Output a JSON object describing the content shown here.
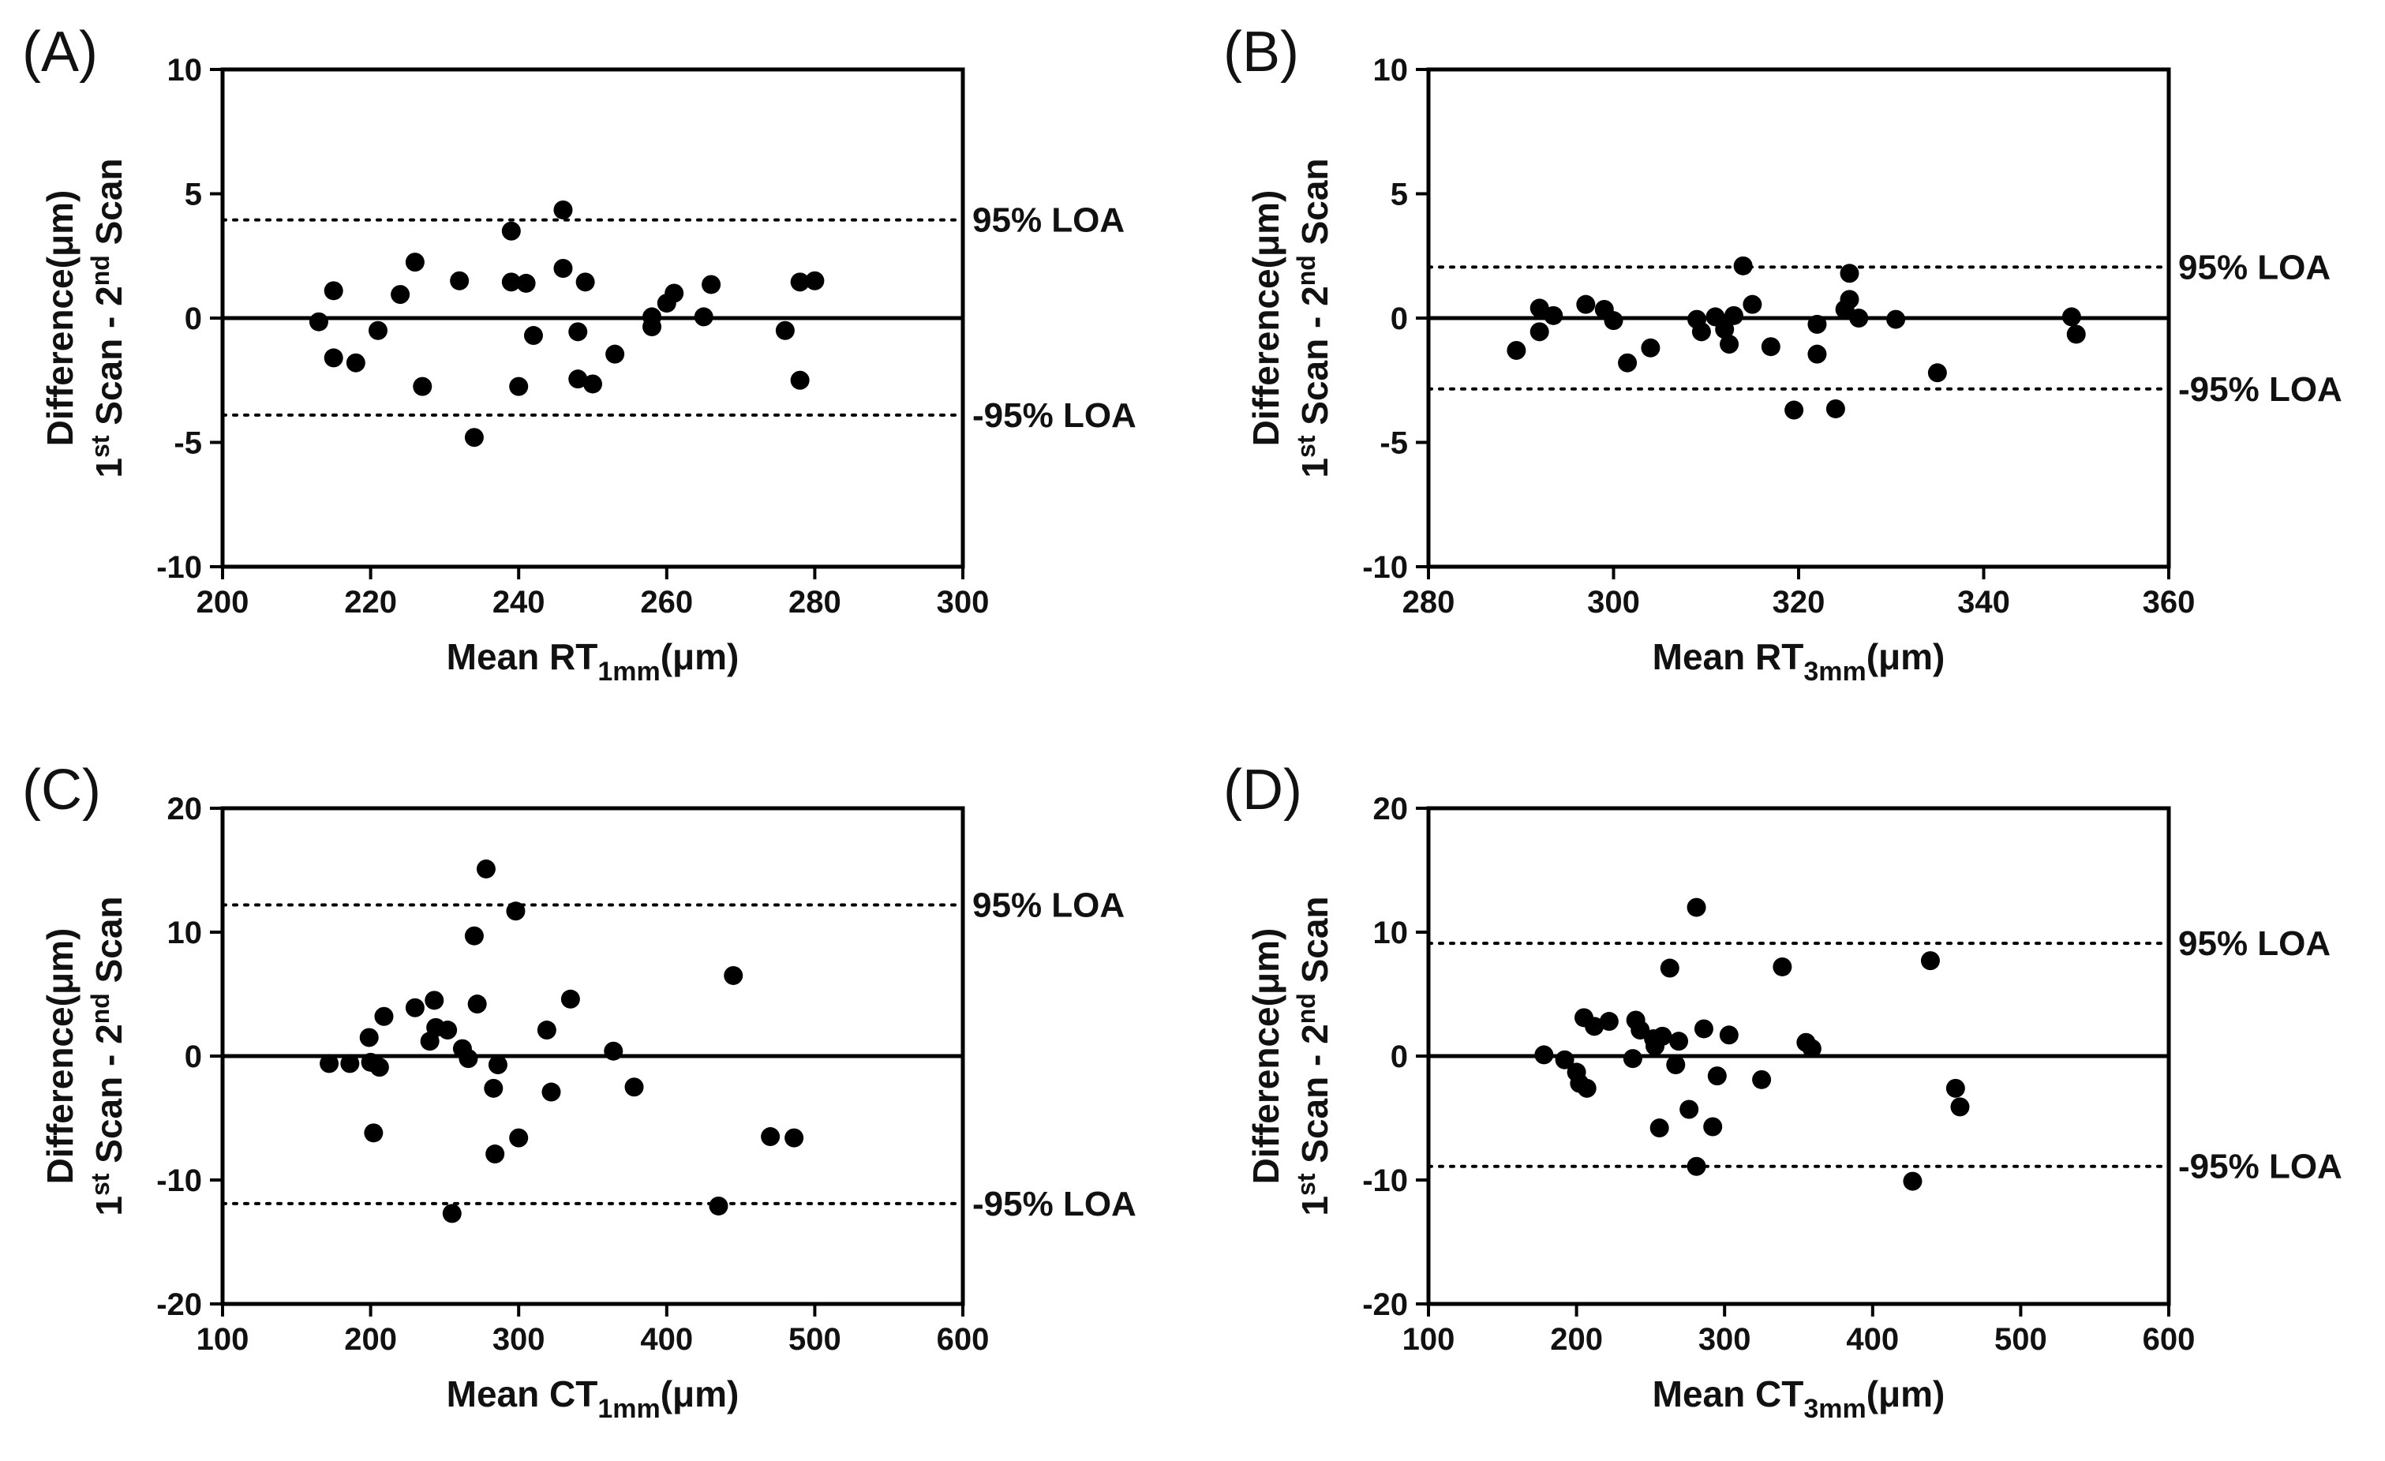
{
  "chart_data": [
    {
      "type": "scatter",
      "panel_label": "(A)",
      "xlabel": {
        "prefix": "Mean RT",
        "sub": "1mm",
        "suffix": "(μm)"
      },
      "ylabel_top": "Difference(μm)",
      "ylabel_bottom": {
        "a": "1",
        "sup1": "st",
        "b": " Scan - 2",
        "sup2": "nd",
        "c": " Scan"
      },
      "xlim": [
        200,
        300
      ],
      "xticks": [
        200,
        220,
        240,
        260,
        280,
        300
      ],
      "ylim": [
        -10,
        10
      ],
      "yticks": [
        -10,
        -5,
        0,
        5,
        10
      ],
      "loa_upper": 3.95,
      "loa_lower": -3.9,
      "loa_upper_label": "95% LOA",
      "loa_lower_label": "-95% LOA",
      "points": [
        [
          213,
          -0.15
        ],
        [
          215,
          1.1
        ],
        [
          215,
          -1.6
        ],
        [
          218,
          -1.8
        ],
        [
          221,
          -0.5
        ],
        [
          224,
          0.95
        ],
        [
          226,
          2.25
        ],
        [
          227,
          -2.75
        ],
        [
          232,
          1.5
        ],
        [
          234,
          -4.8
        ],
        [
          239,
          3.5
        ],
        [
          239,
          1.45
        ],
        [
          240,
          -2.75
        ],
        [
          241,
          1.4
        ],
        [
          242,
          -0.7
        ],
        [
          246,
          4.35
        ],
        [
          246,
          2.0
        ],
        [
          248,
          -2.45
        ],
        [
          248,
          -0.55
        ],
        [
          249,
          1.45
        ],
        [
          250,
          -2.65
        ],
        [
          253,
          -1.45
        ],
        [
          258,
          0.05
        ],
        [
          258,
          -0.35
        ],
        [
          260,
          0.6
        ],
        [
          261,
          1.0
        ],
        [
          265,
          0.05
        ],
        [
          266,
          1.35
        ],
        [
          276,
          -0.5
        ],
        [
          278,
          -2.5
        ],
        [
          278,
          1.45
        ],
        [
          280,
          1.5
        ]
      ]
    },
    {
      "type": "scatter",
      "panel_label": "(B)",
      "xlabel": {
        "prefix": "Mean RT",
        "sub": "3mm",
        "suffix": "(μm)"
      },
      "ylabel_top": "Difference(μm)",
      "ylabel_bottom": {
        "a": "1",
        "sup1": "st",
        "b": " Scan - 2",
        "sup2": "nd",
        "c": " Scan"
      },
      "xlim": [
        280,
        360
      ],
      "xticks": [
        280,
        300,
        320,
        340,
        360
      ],
      "ylim": [
        -10,
        10
      ],
      "yticks": [
        -10,
        -5,
        0,
        5,
        10
      ],
      "loa_upper": 2.05,
      "loa_lower": -2.85,
      "loa_upper_label": "95% LOA",
      "loa_lower_label": "-95% LOA",
      "points": [
        [
          289.5,
          -1.3
        ],
        [
          292,
          0.4
        ],
        [
          292,
          -0.55
        ],
        [
          293.5,
          0.1
        ],
        [
          297,
          0.55
        ],
        [
          299,
          0.35
        ],
        [
          300,
          -0.1
        ],
        [
          301.5,
          -1.8
        ],
        [
          304,
          -1.2
        ],
        [
          309,
          -0.05
        ],
        [
          309.5,
          -0.55
        ],
        [
          311,
          0.05
        ],
        [
          312,
          -0.45
        ],
        [
          312.5,
          -1.05
        ],
        [
          313,
          0.1
        ],
        [
          314,
          2.1
        ],
        [
          315,
          0.55
        ],
        [
          317,
          -1.15
        ],
        [
          319.5,
          -3.7
        ],
        [
          322,
          -0.25
        ],
        [
          322,
          -1.45
        ],
        [
          324,
          -3.65
        ],
        [
          325,
          0.35
        ],
        [
          325.5,
          1.8
        ],
        [
          325.5,
          0.75
        ],
        [
          326.5,
          0.0
        ],
        [
          330.5,
          -0.05
        ],
        [
          335,
          -2.2
        ],
        [
          349.5,
          0.05
        ],
        [
          350,
          -0.65
        ]
      ]
    },
    {
      "type": "scatter",
      "panel_label": "(C)",
      "xlabel": {
        "prefix": "Mean CT",
        "sub": "1mm",
        "suffix": "(μm)"
      },
      "ylabel_top": "Difference(μm)",
      "ylabel_bottom": {
        "a": "1",
        "sup1": "st",
        "b": " Scan - 2",
        "sup2": "nd",
        "c": " Scan"
      },
      "xlim": [
        100,
        600
      ],
      "xticks": [
        100,
        200,
        300,
        400,
        500,
        600
      ],
      "ylim": [
        -20,
        20
      ],
      "yticks": [
        -20,
        -10,
        0,
        10,
        20
      ],
      "loa_upper": 12.2,
      "loa_lower": -11.9,
      "loa_upper_label": "95% LOA",
      "loa_lower_label": "-95% LOA",
      "points": [
        [
          172,
          -0.6
        ],
        [
          186,
          -0.6
        ],
        [
          199,
          1.5
        ],
        [
          200,
          -0.5
        ],
        [
          202,
          -6.2
        ],
        [
          206,
          -0.9
        ],
        [
          209,
          3.2
        ],
        [
          230,
          3.9
        ],
        [
          240,
          1.2
        ],
        [
          243,
          4.5
        ],
        [
          244,
          2.3
        ],
        [
          252,
          2.1
        ],
        [
          255,
          -12.7
        ],
        [
          262,
          0.6
        ],
        [
          266,
          -0.2
        ],
        [
          270,
          9.7
        ],
        [
          272,
          4.2
        ],
        [
          278,
          15.1
        ],
        [
          283,
          -2.6
        ],
        [
          284,
          -7.9
        ],
        [
          286,
          -0.7
        ],
        [
          298,
          11.7
        ],
        [
          300,
          -6.6
        ],
        [
          319,
          2.1
        ],
        [
          322,
          -2.9
        ],
        [
          335,
          4.6
        ],
        [
          364,
          0.4
        ],
        [
          378,
          -2.5
        ],
        [
          435,
          -12.1
        ],
        [
          445,
          6.5
        ],
        [
          470,
          -6.5
        ],
        [
          486,
          -6.6
        ]
      ]
    },
    {
      "type": "scatter",
      "panel_label": "(D)",
      "xlabel": {
        "prefix": "Mean CT",
        "sub": "3mm",
        "suffix": "(μm)"
      },
      "ylabel_top": "Difference(μm)",
      "ylabel_bottom": {
        "a": "1",
        "sup1": "st",
        "b": " Scan - 2",
        "sup2": "nd",
        "c": " Scan"
      },
      "xlim": [
        100,
        600
      ],
      "xticks": [
        100,
        200,
        300,
        400,
        500,
        600
      ],
      "ylim": [
        -20,
        20
      ],
      "yticks": [
        -20,
        -10,
        0,
        10,
        20
      ],
      "loa_upper": 9.1,
      "loa_lower": -8.9,
      "loa_upper_label": "95% LOA",
      "loa_lower_label": "-95% LOA",
      "points": [
        [
          178,
          0.1
        ],
        [
          192,
          -0.3
        ],
        [
          200,
          -1.3
        ],
        [
          202,
          -2.2
        ],
        [
          205,
          3.1
        ],
        [
          207,
          -2.6
        ],
        [
          212,
          2.4
        ],
        [
          222,
          2.8
        ],
        [
          238,
          -0.2
        ],
        [
          240,
          2.9
        ],
        [
          243,
          2.1
        ],
        [
          252,
          1.4
        ],
        [
          253,
          0.8
        ],
        [
          256,
          -5.8
        ],
        [
          258,
          1.6
        ],
        [
          263,
          7.1
        ],
        [
          267,
          -0.7
        ],
        [
          269,
          1.2
        ],
        [
          276,
          -4.3
        ],
        [
          281,
          -8.9
        ],
        [
          281,
          12.0
        ],
        [
          286,
          2.2
        ],
        [
          292,
          -5.7
        ],
        [
          295,
          -1.6
        ],
        [
          303,
          1.7
        ],
        [
          325,
          -1.9
        ],
        [
          339,
          7.2
        ],
        [
          355,
          1.1
        ],
        [
          359,
          0.6
        ],
        [
          427,
          -10.1
        ],
        [
          439,
          7.7
        ],
        [
          456,
          -2.6
        ],
        [
          459,
          -4.1
        ]
      ]
    }
  ]
}
